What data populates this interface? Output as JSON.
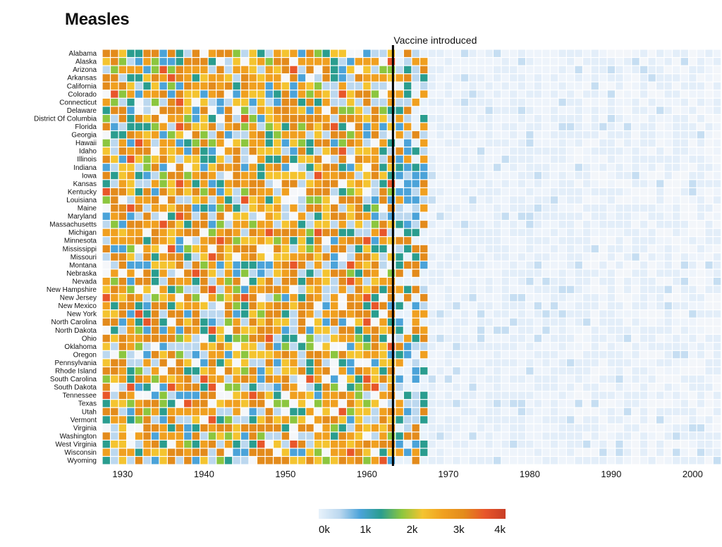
{
  "chart_data": {
    "type": "heatmap",
    "title": "Measles",
    "x_start_year": 1928,
    "x_end_year": 2003,
    "x_ticks": [
      1930,
      1940,
      1950,
      1960,
      1970,
      1980,
      1990,
      2000
    ],
    "states": [
      "Alabama",
      "Alaska",
      "Arizona",
      "Arkansas",
      "California",
      "Colorado",
      "Connecticut",
      "Delaware",
      "District Of Columbia",
      "Florida",
      "Georgia",
      "Hawaii",
      "Idaho",
      "Illinois",
      "Indiana",
      "Iowa",
      "Kansas",
      "Kentucky",
      "Louisiana",
      "Maine",
      "Maryland",
      "Massachusetts",
      "Michigan",
      "Minnesota",
      "Mississippi",
      "Missouri",
      "Montana",
      "Nebraska",
      "Nevada",
      "New Hampshire",
      "New Jersey",
      "New Mexico",
      "New York",
      "North Carolina",
      "North Dakota",
      "Ohio",
      "Oklahoma",
      "Oregon",
      "Pennsylvania",
      "Rhode Island",
      "South Carolina",
      "South Dakota",
      "Tennessee",
      "Texas",
      "Utah",
      "Vermont",
      "Virginia",
      "Washington",
      "West Virginia",
      "Wisconsin",
      "Wyoming"
    ],
    "annotation": {
      "label": "Vaccine introduced",
      "year": 1963
    },
    "color_scale": {
      "stops": [
        "#e8f2fb",
        "#bcd8ef",
        "#4ba3d9",
        "#2a9d8f",
        "#8cc63f",
        "#f4c430",
        "#f0a020",
        "#e38b1c",
        "#e8562a",
        "#c83e26"
      ],
      "domain_max": 4000,
      "legend_labels": [
        "0k",
        "1k",
        "2k",
        "3k",
        "4k"
      ]
    },
    "summary": {
      "pre_vaccine_1928_1963": "Most states show high incidence (orange/yellow/green cells, often 1k+ per period) with frequent spikes; gaps where data missing.",
      "post_vaccine_1968_2003": "Nearly all cells very light blue (near 0k), with rare isolated light-blue spikes (e.g. Idaho 1976, Utah 1976)."
    }
  }
}
